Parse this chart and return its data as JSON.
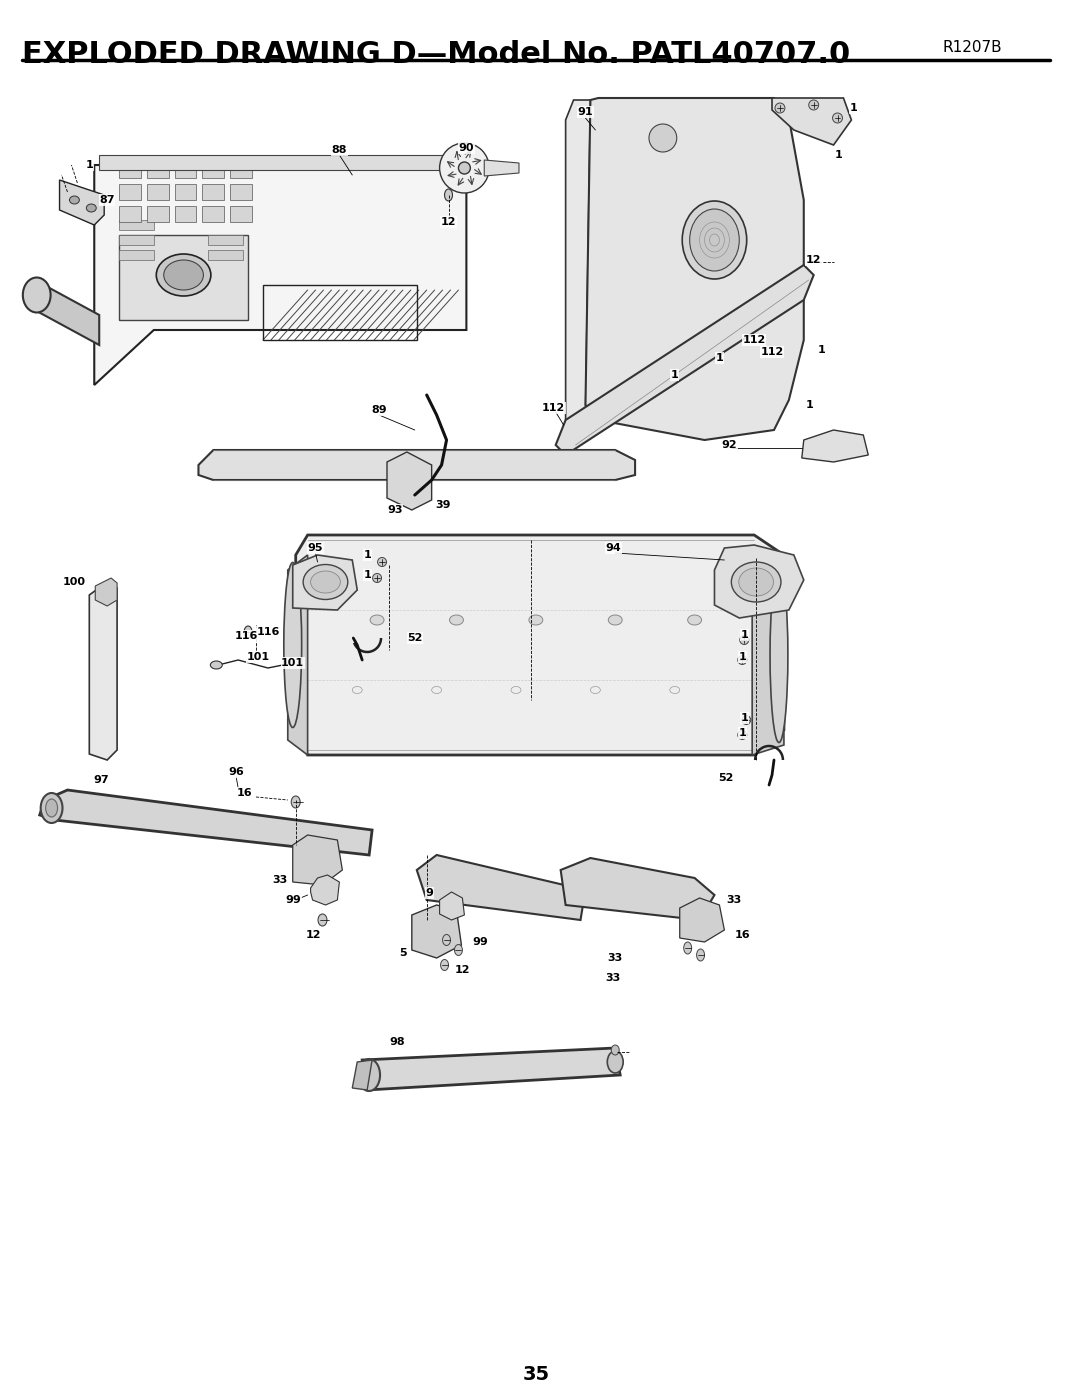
{
  "title": "EXPLODED DRAWING D—Model No. PATL40707.0",
  "subtitle": "R1207B",
  "page_number": "35",
  "bg": "#ffffff",
  "lc": "#000000",
  "title_fs": 22,
  "sub_fs": 11,
  "page_fs": 14
}
